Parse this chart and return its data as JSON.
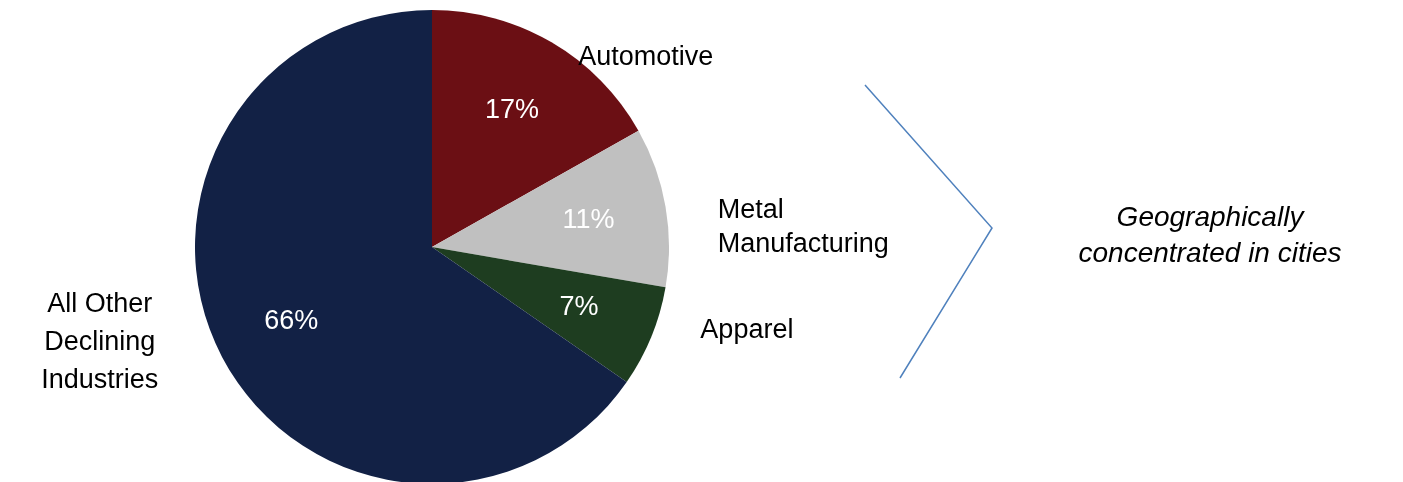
{
  "chart_data": {
    "type": "pie",
    "categories": [
      "Automotive",
      "Metal Manufacturing",
      "Apparel",
      "All Other Declining Industries"
    ],
    "values": [
      17,
      11,
      7,
      66
    ],
    "colors": [
      "#6b0f14",
      "#c0c0c0",
      "#1e3d20",
      "#122145"
    ],
    "value_labels": [
      "17%",
      "11%",
      "7%",
      "66%"
    ],
    "annotations": [
      "Geographically concentrated in cities"
    ]
  }
}
